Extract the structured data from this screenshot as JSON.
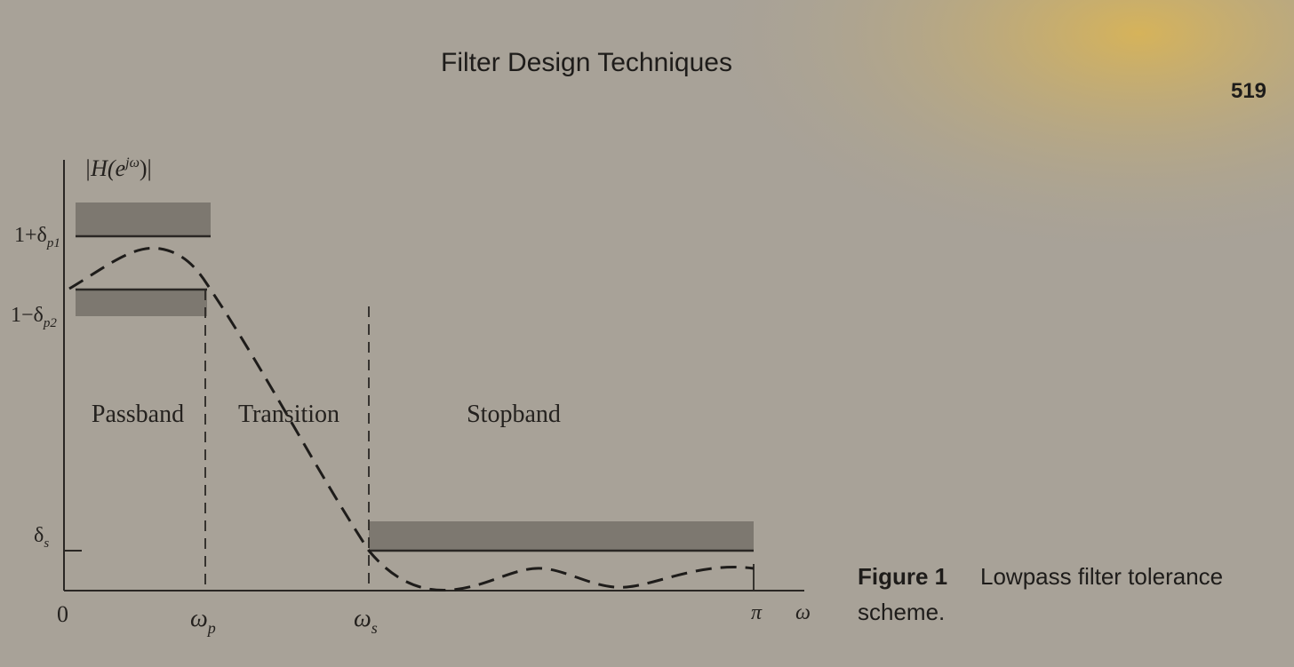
{
  "header": {
    "title": "Filter Design Techniques",
    "page_number": "519"
  },
  "figure": {
    "y_axis_label": {
      "before": "|H(e",
      "sup": "jω",
      "after": ")|"
    },
    "y_labels": [
      {
        "main": "1+δ",
        "sub": "p1"
      },
      {
        "main": "1−δ",
        "sub": "p2"
      },
      {
        "main": "δ",
        "sub": "s"
      }
    ],
    "x_labels": [
      {
        "main": "0",
        "sub": ""
      },
      {
        "main": "ω",
        "sub": "p"
      },
      {
        "main": "ω",
        "sub": "s"
      },
      {
        "main": "π",
        "sub": ""
      },
      {
        "main": "ω",
        "sub": ""
      }
    ],
    "regions": [
      "Passband",
      "Transition",
      "Stopband"
    ],
    "caption": {
      "label": "Figure 1",
      "lines": [
        "Lowpass filter tolerance",
        "scheme."
      ]
    }
  }
}
